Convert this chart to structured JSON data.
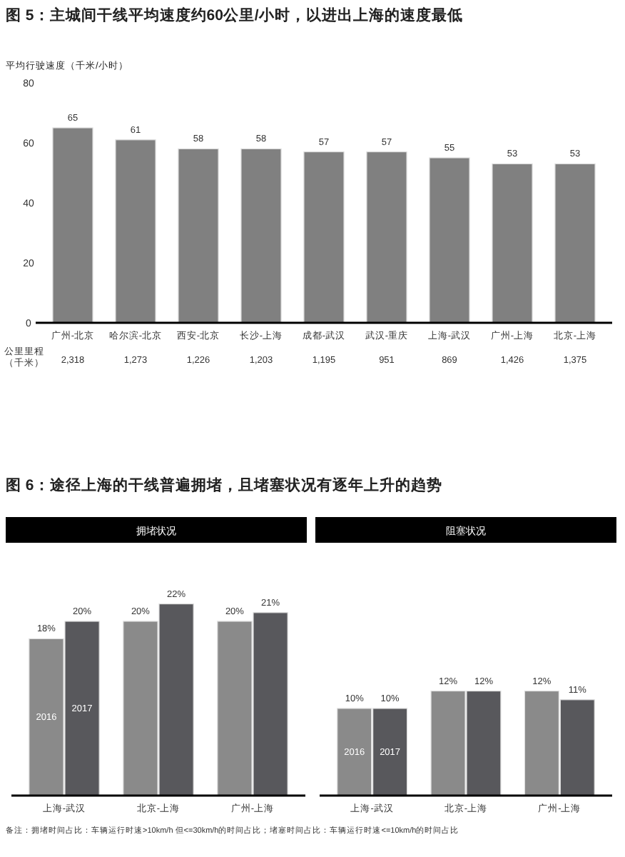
{
  "chart_data": [
    {
      "type": "bar",
      "title": "图 5：主城间干线平均速度约60公里/小时，以进出上海的速度最低",
      "ylabel": "平均行驶速度（千米/小时）",
      "categories": [
        "广州-北京",
        "哈尔滨-北京",
        "西安-北京",
        "长沙-上海",
        "成都-武汉",
        "武汉-重庆",
        "上海-武汉",
        "广州-上海",
        "北京-上海"
      ],
      "values": [
        65,
        61,
        58,
        58,
        57,
        57,
        55,
        53,
        53
      ],
      "color": "#808080",
      "ylim": [
        0,
        80
      ],
      "yticks": [
        0,
        20,
        40,
        60,
        80
      ],
      "data_labels": true,
      "annotations": [
        "公里里程（千米）",
        "2,318",
        "1,273",
        "1,226",
        "1,203",
        "1,195",
        "951",
        "869",
        "1,426",
        "1,375"
      ]
    },
    {
      "type": "bar",
      "title": "图 6：途径上海的干线普遍拥堵，且堵塞状况有逐年上升的趋势",
      "subtitle": "拥堵状况",
      "categories": [
        "上海-武汉",
        "北京-上海",
        "广州-上海"
      ],
      "tick_labels": "x",
      "series": [
        {
          "name": "2016",
          "color": "#8a8a8a",
          "values": [
            18,
            20,
            20
          ],
          "value_labels": [
            "18%",
            "20%",
            "20%"
          ]
        },
        {
          "name": "2017",
          "color": "#58585c",
          "values": [
            20,
            22,
            21
          ],
          "value_labels": [
            "20%",
            "22%",
            "21%"
          ]
        }
      ]
    },
    {
      "type": "bar",
      "title": "阻塞状况",
      "categories": [
        "上海-武汉",
        "北京-上海",
        "广州-上海"
      ],
      "tick_labels": "x",
      "series": [
        {
          "name": "2016",
          "color": "#8a8a8a",
          "values": [
            10,
            12,
            12
          ],
          "value_labels": [
            "10%",
            "12%",
            "12%"
          ]
        },
        {
          "name": "2017",
          "color": "#58585c",
          "values": [
            10,
            12,
            11
          ],
          "value_labels": [
            "10%",
            "12%",
            "11%"
          ]
        }
      ],
      "annotations": [
        "备注：拥堵时间占比：车辆运行时速>10km/h 但<=30km/h的时间占比；堵塞时间占比：车辆运行时速<=10km/h的时间占比"
      ]
    }
  ]
}
